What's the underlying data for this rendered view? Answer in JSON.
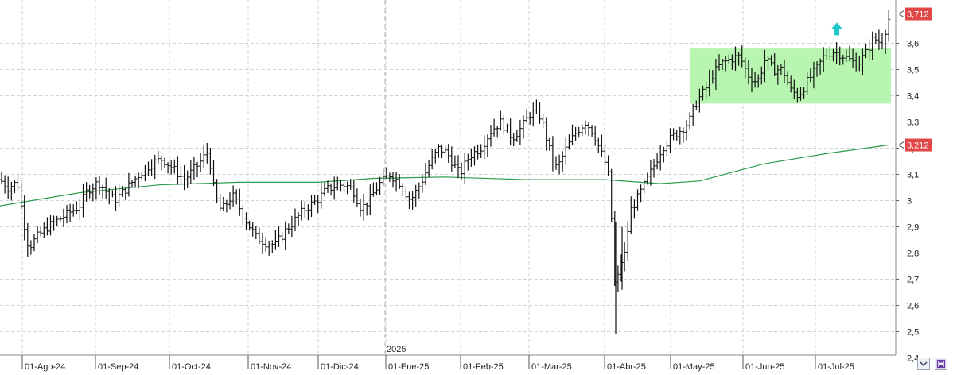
{
  "chart_data": {
    "type": "ohlc",
    "year_marker": "2025",
    "x_tick_labels": [
      "01-Ago-24",
      "01-Sep-24",
      "01-Oct-24",
      "01-Nov-24",
      "01-Dic-24",
      "01-Ene-25",
      "01-Feb-25",
      "01-Mar-25",
      "01-Abr-25",
      "01-May-25",
      "01-Jun-25",
      "01-Jul-25"
    ],
    "y_ticks": [
      "2,4",
      "2,5",
      "2,6",
      "2,7",
      "2,8",
      "2,9",
      "3",
      "3,1",
      "3,2",
      "3,3",
      "3,4",
      "3,5",
      "3,6"
    ],
    "ylim": [
      2.4,
      3.72
    ],
    "grid": true,
    "price_tags": [
      {
        "label": "3,712",
        "value": 3.712,
        "color": "#e04848"
      },
      {
        "label": "3,212",
        "value": 3.212,
        "color": "#e04848"
      }
    ],
    "moving_average": {
      "color": "#2a9d4a",
      "points": [
        [
          0,
          2.98
        ],
        [
          100,
          3.03
        ],
        [
          200,
          3.06
        ],
        [
          300,
          3.07
        ],
        [
          400,
          3.07
        ],
        [
          470,
          3.085
        ],
        [
          560,
          3.09
        ],
        [
          660,
          3.08
        ],
        [
          760,
          3.08
        ],
        [
          830,
          3.065
        ],
        [
          880,
          3.075
        ],
        [
          960,
          3.14
        ],
        [
          1040,
          3.18
        ],
        [
          1117,
          3.212
        ]
      ]
    },
    "consolidation_zone": {
      "x_from": 868,
      "x_to": 1120,
      "y_low": 3.37,
      "y_high": 3.58,
      "color": "#b8f5b0"
    },
    "breakout_arrow": {
      "x": 1052,
      "value": 3.655,
      "color": "#1ec8c8"
    },
    "close_anchors": [
      [
        0,
        3.08
      ],
      [
        10,
        3.05
      ],
      [
        22,
        3.07
      ],
      [
        28,
        2.95
      ],
      [
        36,
        2.82
      ],
      [
        46,
        2.86
      ],
      [
        60,
        2.9
      ],
      [
        80,
        2.94
      ],
      [
        100,
        2.98
      ],
      [
        110,
        3.04
      ],
      [
        124,
        3.07
      ],
      [
        132,
        3.04
      ],
      [
        144,
        3.0
      ],
      [
        160,
        3.05
      ],
      [
        175,
        3.1
      ],
      [
        190,
        3.14
      ],
      [
        204,
        3.16
      ],
      [
        218,
        3.12
      ],
      [
        232,
        3.08
      ],
      [
        250,
        3.14
      ],
      [
        262,
        3.19
      ],
      [
        270,
        3.02
      ],
      [
        278,
        2.96
      ],
      [
        292,
        3.02
      ],
      [
        300,
        2.98
      ],
      [
        310,
        2.92
      ],
      [
        322,
        2.86
      ],
      [
        334,
        2.84
      ],
      [
        346,
        2.83
      ],
      [
        360,
        2.89
      ],
      [
        372,
        2.93
      ],
      [
        384,
        2.97
      ],
      [
        398,
        3.0
      ],
      [
        410,
        3.04
      ],
      [
        424,
        3.06
      ],
      [
        434,
        3.06
      ],
      [
        444,
        3.04
      ],
      [
        454,
        2.97
      ],
      [
        464,
        3.0
      ],
      [
        476,
        3.06
      ],
      [
        490,
        3.1
      ],
      [
        502,
        3.07
      ],
      [
        516,
        3.0
      ],
      [
        528,
        3.06
      ],
      [
        540,
        3.14
      ],
      [
        552,
        3.2
      ],
      [
        562,
        3.18
      ],
      [
        578,
        3.1
      ],
      [
        590,
        3.17
      ],
      [
        604,
        3.2
      ],
      [
        618,
        3.27
      ],
      [
        630,
        3.3
      ],
      [
        644,
        3.24
      ],
      [
        656,
        3.28
      ],
      [
        668,
        3.34
      ],
      [
        680,
        3.32
      ],
      [
        690,
        3.2
      ],
      [
        700,
        3.12
      ],
      [
        712,
        3.2
      ],
      [
        724,
        3.26
      ],
      [
        736,
        3.3
      ],
      [
        746,
        3.26
      ],
      [
        756,
        3.18
      ],
      [
        764,
        3.12
      ],
      [
        770,
        2.88
      ],
      [
        774,
        2.6
      ],
      [
        778,
        2.75
      ],
      [
        786,
        2.8
      ],
      [
        792,
        2.96
      ],
      [
        800,
        3.0
      ],
      [
        810,
        3.06
      ],
      [
        820,
        3.12
      ],
      [
        832,
        3.2
      ],
      [
        844,
        3.24
      ],
      [
        856,
        3.27
      ],
      [
        866,
        3.3
      ],
      [
        876,
        3.38
      ],
      [
        886,
        3.42
      ],
      [
        896,
        3.48
      ],
      [
        906,
        3.52
      ],
      [
        918,
        3.54
      ],
      [
        930,
        3.55
      ],
      [
        940,
        3.48
      ],
      [
        952,
        3.45
      ],
      [
        962,
        3.54
      ],
      [
        972,
        3.5
      ],
      [
        984,
        3.5
      ],
      [
        994,
        3.42
      ],
      [
        1004,
        3.4
      ],
      [
        1016,
        3.46
      ],
      [
        1026,
        3.5
      ],
      [
        1036,
        3.55
      ],
      [
        1046,
        3.57
      ],
      [
        1056,
        3.56
      ],
      [
        1066,
        3.54
      ],
      [
        1078,
        3.52
      ],
      [
        1088,
        3.56
      ],
      [
        1098,
        3.62
      ],
      [
        1108,
        3.6
      ],
      [
        1118,
        3.7
      ]
    ]
  },
  "controls": {
    "scroll_icon": "chevron-down-icon",
    "save_icon": "save-icon"
  }
}
